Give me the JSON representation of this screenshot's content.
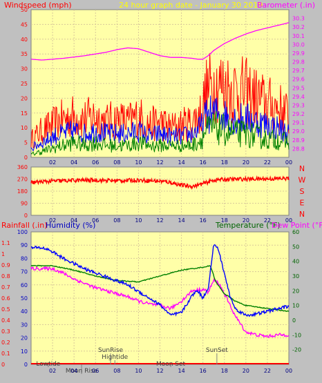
{
  "colors": {
    "bg": "#c0c0c0",
    "plot_bg": "#ffffa8",
    "grid": "#d8c89a",
    "wind_title": "#ff0000",
    "title_date": "#ffff00",
    "baro": "#ff00ff",
    "gust": "#ff0000",
    "avg": "#0000ff",
    "low": "#008000",
    "dir": "#ff0000",
    "hum_title": "#0000c0",
    "temp_title": "#006400",
    "dew_title": "#ff00ff",
    "rain_title": "#ff0000",
    "annot": "#404040"
  },
  "header": {
    "windspeed_label": "Windspeed (mph)",
    "date_label": "24 hour graph date - January 30 2019",
    "barometer_label": "Barometer (.in)"
  },
  "middle": {
    "compass": [
      "N",
      "W",
      "S",
      "E",
      "N"
    ]
  },
  "bottom_header": {
    "rainfall_label": "Rainfall (.in)",
    "humidity_label": "Humidity (%)",
    "temperature_label": "Temperature (°F)",
    "dewpoint_label": "Dew Point (°F)"
  },
  "x_ticks": [
    "02",
    "04",
    "06",
    "08",
    "10",
    "12",
    "14",
    "16",
    "18",
    "20",
    "22",
    "00"
  ],
  "annotations": [
    {
      "text": "Lowtide",
      "hour": 1.6,
      "row": 2
    },
    {
      "text": "Moon Rise",
      "hour": 4.7,
      "row": 3
    },
    {
      "text": "SunRise",
      "hour": 7.4,
      "row": 0
    },
    {
      "text": "Hightide",
      "hour": 7.8,
      "row": 1
    },
    {
      "text": "Moon Set",
      "hour": 13.0,
      "row": 2
    },
    {
      "text": "SunSet",
      "hour": 17.3,
      "row": 0
    }
  ],
  "chart_data": [
    {
      "type": "line",
      "title": "24 hour graph date - January 30 2019",
      "x_range_hours": [
        0,
        24
      ],
      "y_left": {
        "label": "Windspeed (mph)",
        "ylim": [
          0,
          50
        ],
        "ticks": [
          0,
          5,
          10,
          15,
          20,
          25,
          30,
          35,
          40,
          45,
          50
        ]
      },
      "y_right": {
        "label": "Barometer (.in)",
        "ylim": [
          28.7,
          30.4
        ],
        "ticks": [
          28.8,
          28.9,
          29.0,
          29.1,
          29.2,
          29.3,
          29.4,
          29.5,
          29.6,
          29.7,
          29.8,
          29.9,
          30.0,
          30.1,
          30.2,
          30.3
        ]
      },
      "series": [
        {
          "name": "Barometer",
          "axis": "right",
          "x": [
            0,
            1,
            3,
            5,
            7,
            8,
            9,
            10,
            11,
            12,
            13,
            14,
            15,
            15.5,
            16,
            16.5,
            17,
            18,
            19,
            20,
            21,
            22,
            23,
            24
          ],
          "values": [
            29.83,
            29.82,
            29.84,
            29.87,
            29.91,
            29.94,
            29.96,
            29.95,
            29.91,
            29.87,
            29.85,
            29.85,
            29.84,
            29.83,
            29.83,
            29.87,
            29.93,
            30.01,
            30.07,
            30.12,
            30.16,
            30.19,
            30.22,
            30.25
          ]
        },
        {
          "name": "Gust",
          "axis": "left",
          "x": [
            0,
            1,
            2,
            3,
            4,
            5,
            6,
            7,
            8,
            9,
            10,
            11,
            12,
            13,
            14,
            15,
            15.8,
            16.3,
            17,
            18,
            19,
            20,
            21,
            22,
            23,
            24
          ],
          "values": [
            6,
            9,
            11,
            13,
            14,
            13,
            14,
            12,
            13,
            12,
            14,
            11,
            12,
            10,
            11,
            12,
            15,
            22,
            25,
            24,
            23,
            22,
            20,
            18,
            17,
            14
          ]
        },
        {
          "name": "Average",
          "axis": "left",
          "x": [
            0,
            1,
            2,
            3,
            4,
            5,
            6,
            7,
            8,
            9,
            10,
            11,
            12,
            13,
            14,
            15,
            15.8,
            16.3,
            17,
            18,
            19,
            20,
            21,
            22,
            23,
            24
          ],
          "values": [
            3,
            5,
            7,
            8,
            9,
            8,
            9,
            8,
            8,
            8,
            9,
            7,
            8,
            7,
            7,
            8,
            10,
            14,
            15,
            14,
            13,
            13,
            12,
            11,
            10,
            8
          ]
        },
        {
          "name": "Low",
          "axis": "left",
          "x": [
            0,
            1,
            2,
            3,
            4,
            5,
            6,
            7,
            8,
            9,
            10,
            11,
            12,
            13,
            14,
            15,
            15.8,
            16.3,
            17,
            18,
            19,
            20,
            21,
            22,
            23,
            24
          ],
          "values": [
            1,
            2,
            3,
            4,
            5,
            4,
            5,
            4,
            4,
            4,
            5,
            4,
            4,
            4,
            4,
            4,
            6,
            9,
            10,
            9,
            8,
            8,
            7,
            6,
            6,
            5
          ]
        }
      ]
    },
    {
      "type": "line",
      "y_left": {
        "ylim": [
          0,
          360
        ],
        "ticks": [
          0,
          90,
          180,
          270,
          360
        ]
      },
      "series": [
        {
          "name": "Wind Direction",
          "x": [
            0,
            2,
            4,
            6,
            8,
            10,
            12,
            13,
            14,
            15,
            16,
            17,
            18,
            20,
            22,
            24
          ],
          "values": [
            245,
            255,
            260,
            262,
            258,
            262,
            255,
            245,
            225,
            215,
            235,
            262,
            268,
            270,
            272,
            275
          ]
        }
      ]
    },
    {
      "type": "line",
      "y_left_outer": {
        "label": "Rainfall (.in)",
        "ylim": [
          0,
          1.2
        ],
        "ticks": [
          0,
          0.1,
          0.2,
          0.3,
          0.4,
          0.5,
          0.6,
          0.7,
          0.8,
          0.9,
          1.0,
          1.1
        ]
      },
      "y_left_inner": {
        "label": "Humidity (%)",
        "ylim": [
          0,
          100
        ],
        "ticks": [
          0,
          10,
          20,
          30,
          40,
          50,
          60,
          70,
          80,
          90,
          100
        ]
      },
      "y_right": {
        "label": "Temperature (°F)",
        "ylim": [
          -30,
          60
        ],
        "ticks": [
          -20,
          -10,
          0,
          10,
          20,
          30,
          40,
          50,
          60
        ]
      },
      "series": [
        {
          "name": "Humidity",
          "axis": "humidity",
          "x": [
            0,
            1,
            1.5,
            2,
            3,
            4,
            5,
            6,
            7,
            8,
            9,
            10,
            11,
            12,
            13,
            14,
            15,
            15.5,
            16,
            16.5,
            17,
            17.4,
            17.8,
            18.5,
            19,
            20,
            21,
            22,
            23,
            24
          ],
          "values": [
            88,
            88,
            87,
            85,
            80,
            76,
            72,
            69,
            66,
            63,
            60,
            55,
            50,
            45,
            37,
            39,
            52,
            56,
            50,
            58,
            90,
            88,
            75,
            52,
            42,
            37,
            38,
            40,
            42,
            44
          ]
        },
        {
          "name": "Temperature",
          "axis": "temp",
          "x": [
            0,
            2,
            4,
            6,
            8,
            10,
            11,
            12,
            13,
            14,
            15,
            16,
            16.7,
            17.2,
            18,
            19,
            20,
            21,
            22,
            23,
            24
          ],
          "values": [
            37,
            37,
            34,
            30,
            27,
            26,
            28,
            30,
            32,
            34,
            35,
            36,
            37,
            26,
            18,
            13,
            10,
            9,
            8,
            7,
            6
          ]
        },
        {
          "name": "Dew Point",
          "axis": "temp",
          "x": [
            0,
            2,
            3,
            4,
            5,
            6,
            7,
            8,
            9,
            10,
            11,
            12,
            13,
            14,
            15,
            16,
            16.5,
            17,
            17.5,
            18,
            19,
            20,
            21,
            22,
            23,
            24
          ],
          "values": [
            35,
            35,
            32,
            28,
            25,
            22,
            20,
            18,
            16,
            13,
            11,
            10,
            8,
            13,
            20,
            21,
            19,
            27,
            25,
            18,
            3,
            -8,
            -10,
            -11,
            -10,
            -10
          ]
        },
        {
          "name": "Rainfall",
          "axis": "rain",
          "x": [
            0,
            24
          ],
          "values": [
            0,
            0
          ]
        }
      ]
    }
  ]
}
